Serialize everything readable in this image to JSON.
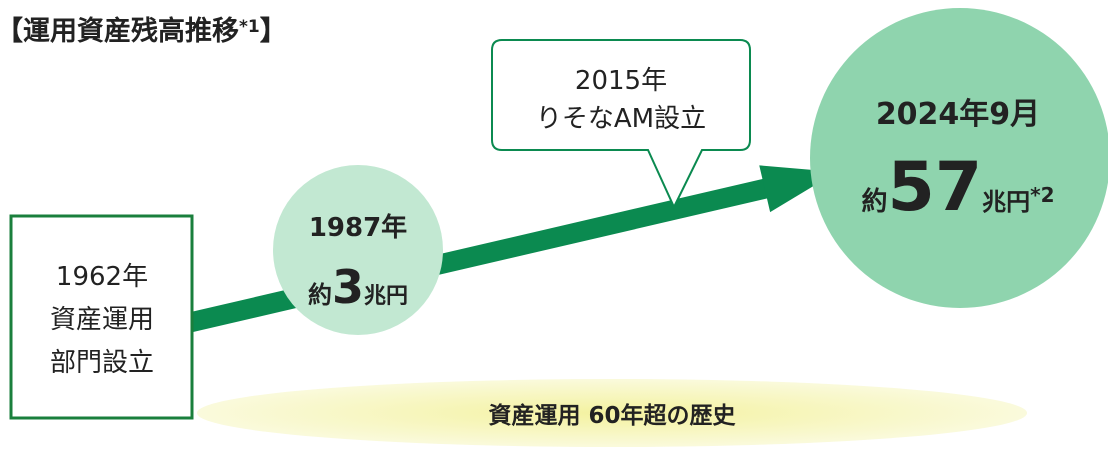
{
  "title": {
    "open": "【運用資産残高推移",
    "note": "*1",
    "close": "】"
  },
  "nodes": [
    {
      "lines": [
        "1962年",
        "資産運用",
        "部門設立"
      ]
    },
    {
      "year": "1987年",
      "prefix": "約",
      "amount": "3",
      "unit": "兆円"
    },
    {
      "lines": [
        "2015年",
        "りそなAM設立"
      ]
    },
    {
      "year": "2024年9月",
      "prefix": "約",
      "amount": "57",
      "unit": "兆円",
      "note": "*2"
    }
  ],
  "banner": "資産運用 60年超の歴史"
}
